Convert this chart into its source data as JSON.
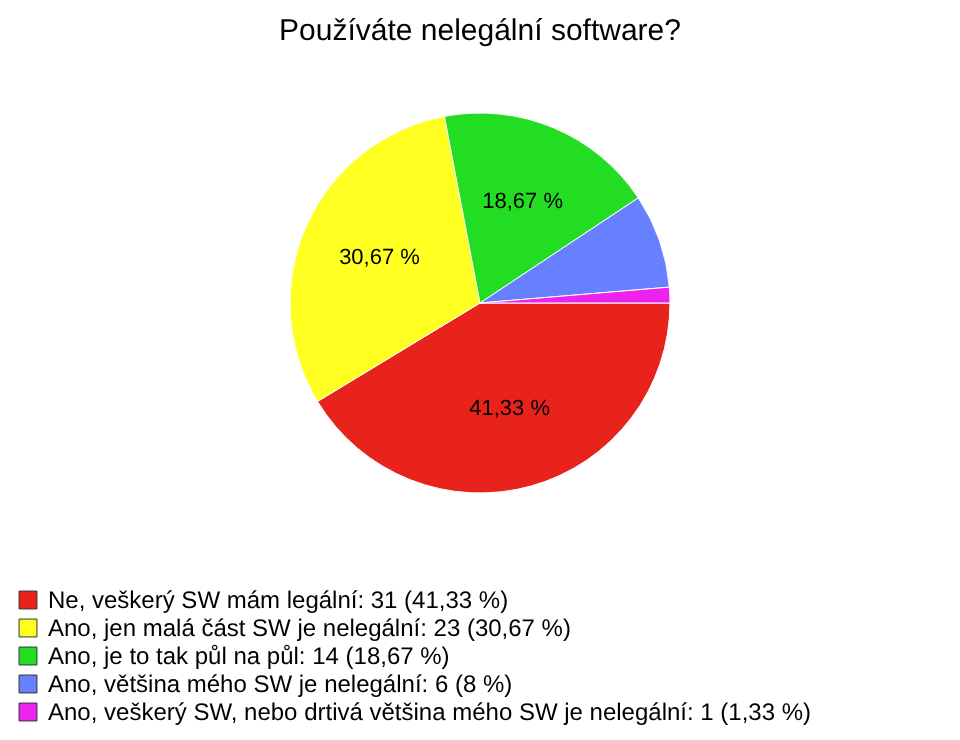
{
  "chart_data": {
    "type": "pie",
    "title": "Používáte nelegální software?",
    "categories": [
      "Ne, veškerý SW mám legální: 31 (41,33 %)",
      "Ano, jen malá část SW je nelegální: 23 (30,67 %)",
      "Ano, je to tak půl na půl: 14 (18,67 %)",
      "Ano, většina mého SW je nelegální: 6 (8 %)",
      "Ano, veškerý SW, nebo drtivá většina mého SW je nelegální: 1 (1,33 %)"
    ],
    "values": [
      41.33,
      30.67,
      18.67,
      8,
      1.33
    ],
    "value_labels": [
      "41,33 %",
      "30,67 %",
      "18,67 %",
      null,
      null
    ],
    "colors": [
      "#e8231b",
      "#ffff22",
      "#22dd22",
      "#6680ff",
      "#ee22ee"
    ],
    "legend": "bottom"
  }
}
